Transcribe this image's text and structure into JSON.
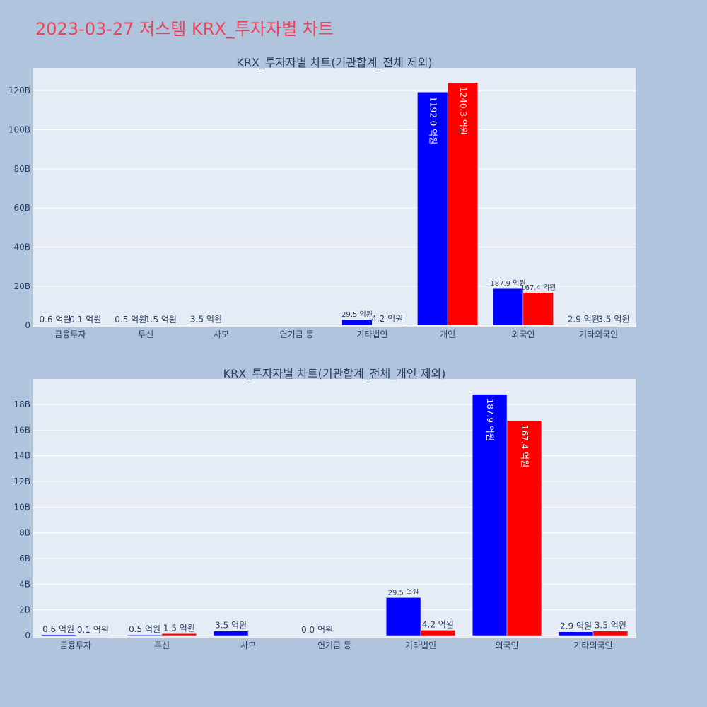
{
  "title": "2023-03-27 저스템 KRX_투자자별 차트",
  "chart_data": [
    {
      "type": "bar",
      "title": "KRX_투자자별 차트(기관합계_전체 제외)",
      "categories": [
        "금융투자",
        "투신",
        "사모",
        "연기금 등",
        "기타법인",
        "개인",
        "외국인",
        "기타외국인"
      ],
      "series": [
        {
          "color": "#0000ff",
          "values": [
            60000000,
            50000000,
            350000000,
            null,
            2950000000,
            119200000000,
            18790000000,
            290000000
          ],
          "value_labels": [
            "0.6 억원",
            "0.5 억원",
            "3.5 억원",
            null,
            "29.5 억원",
            "1192.0 억원",
            "187.9 억원",
            "2.9 억원"
          ]
        },
        {
          "color": "#ff0000",
          "values": [
            10000000,
            150000000,
            null,
            null,
            420000000,
            124030000000,
            16740000000,
            350000000
          ],
          "value_labels": [
            "0.1 억원",
            "1.5 억원",
            null,
            null,
            "4.2 억원",
            "1240.3 억원",
            "167.4 억원",
            "3.5 억원"
          ]
        }
      ],
      "ylim": [
        -1000000000,
        131600000000
      ],
      "yticks": [
        0,
        {
          "value": 20000000000,
          "label": "20B"
        },
        {
          "value": 40000000000,
          "label": "40B"
        },
        {
          "value": 60000000000,
          "label": "60B"
        },
        {
          "value": 80000000000,
          "label": "80B"
        },
        {
          "value": 100000000000,
          "label": "100B"
        },
        {
          "value": 120000000000,
          "label": "120B"
        }
      ],
      "grid": true
    },
    {
      "type": "bar",
      "title": "KRX_투자자별 차트(기관합계_전체_개인 제외)",
      "categories": [
        "금융투자",
        "투신",
        "사모",
        "연기금 등",
        "기타법인",
        "외국인",
        "기타외국인"
      ],
      "series": [
        {
          "color": "#0000ff",
          "values": [
            60000000,
            50000000,
            350000000,
            0,
            2950000000,
            18790000000,
            290000000
          ],
          "value_labels": [
            "0.6 억원",
            "0.5 억원",
            "3.5 억원",
            "0.0 억원",
            "29.5 억원",
            "187.9 억원",
            "2.9 억원"
          ]
        },
        {
          "color": "#ff0000",
          "values": [
            10000000,
            150000000,
            null,
            null,
            420000000,
            16740000000,
            350000000
          ],
          "value_labels": [
            "0.1 억원",
            "1.5 억원",
            null,
            null,
            "4.2 억원",
            "167.4 억원",
            "3.5 억원"
          ]
        }
      ],
      "ylim": [
        -220000000,
        19980000000
      ],
      "yticks": [
        0,
        {
          "value": 2000000000,
          "label": "2B"
        },
        {
          "value": 4000000000,
          "label": "4B"
        },
        {
          "value": 6000000000,
          "label": "6B"
        },
        {
          "value": 8000000000,
          "label": "8B"
        },
        {
          "value": 10000000000,
          "label": "10B"
        },
        {
          "value": 12000000000,
          "label": "12B"
        },
        {
          "value": 14000000000,
          "label": "14B"
        },
        {
          "value": 16000000000,
          "label": "16B"
        },
        {
          "value": 18000000000,
          "label": "18B"
        }
      ],
      "grid": true
    }
  ]
}
